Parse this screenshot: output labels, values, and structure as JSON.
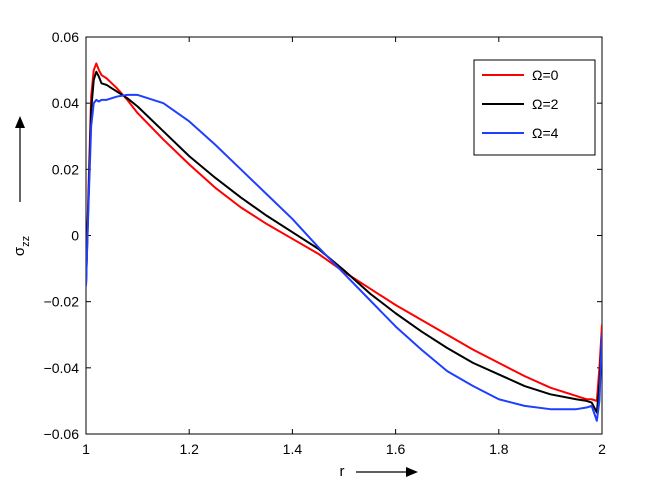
{
  "chart_data": {
    "type": "line",
    "xlabel": "r",
    "ylabel": "σ",
    "ylabel_sub": "zz",
    "xlim": [
      1,
      2
    ],
    "ylim": [
      -0.06,
      0.06
    ],
    "xticks": [
      "1",
      "1.2",
      "1.4",
      "1.6",
      "1.8",
      "2"
    ],
    "xtick_values": [
      1,
      1.2,
      1.4,
      1.6,
      1.8,
      2
    ],
    "yticks": [
      "−0.06",
      "−0.04",
      "−0.02",
      "0",
      "0.02",
      "0.04",
      "0.06"
    ],
    "ytick_values": [
      -0.06,
      -0.04,
      -0.02,
      0,
      0.02,
      0.04,
      0.06
    ],
    "grid": false,
    "legend_position": "top-right",
    "series": [
      {
        "name": "Ω=0",
        "color": "#ff0000",
        "x": [
          1.0,
          1.005,
          1.01,
          1.015,
          1.02,
          1.025,
          1.03,
          1.04,
          1.05,
          1.06,
          1.08,
          1.1,
          1.15,
          1.2,
          1.25,
          1.3,
          1.35,
          1.4,
          1.45,
          1.5,
          1.55,
          1.6,
          1.65,
          1.7,
          1.75,
          1.8,
          1.85,
          1.9,
          1.95,
          1.97,
          1.98,
          1.99,
          1.995,
          2.0
        ],
        "y": [
          -0.015,
          0.015,
          0.042,
          0.05,
          0.052,
          0.05,
          0.0485,
          0.0475,
          0.046,
          0.0445,
          0.041,
          0.037,
          0.029,
          0.0215,
          0.0145,
          0.0085,
          0.0035,
          -0.001,
          -0.0055,
          -0.011,
          -0.016,
          -0.021,
          -0.0255,
          -0.03,
          -0.0345,
          -0.0385,
          -0.0425,
          -0.046,
          -0.0485,
          -0.0495,
          -0.0495,
          -0.05,
          -0.04,
          -0.027
        ]
      },
      {
        "name": "Ω=2",
        "color": "#000000",
        "x": [
          1.0,
          1.005,
          1.01,
          1.015,
          1.02,
          1.025,
          1.03,
          1.04,
          1.05,
          1.06,
          1.08,
          1.1,
          1.15,
          1.2,
          1.25,
          1.3,
          1.35,
          1.4,
          1.45,
          1.5,
          1.55,
          1.6,
          1.65,
          1.7,
          1.75,
          1.8,
          1.85,
          1.9,
          1.95,
          1.97,
          1.98,
          1.99,
          1.995,
          2.0
        ],
        "y": [
          -0.015,
          0.012,
          0.038,
          0.047,
          0.0495,
          0.048,
          0.046,
          0.0455,
          0.0445,
          0.0435,
          0.0415,
          0.039,
          0.0315,
          0.024,
          0.0175,
          0.0115,
          0.006,
          0.001,
          -0.004,
          -0.0105,
          -0.0175,
          -0.0235,
          -0.029,
          -0.034,
          -0.0385,
          -0.042,
          -0.0455,
          -0.048,
          -0.0495,
          -0.05,
          -0.0505,
          -0.0535,
          -0.045,
          -0.03
        ]
      },
      {
        "name": "Ω=4",
        "color": "#1f3fff",
        "x": [
          1.0,
          1.005,
          1.01,
          1.015,
          1.02,
          1.025,
          1.03,
          1.04,
          1.05,
          1.06,
          1.08,
          1.1,
          1.15,
          1.2,
          1.25,
          1.3,
          1.35,
          1.4,
          1.45,
          1.5,
          1.55,
          1.6,
          1.65,
          1.7,
          1.75,
          1.8,
          1.85,
          1.9,
          1.95,
          1.97,
          1.98,
          1.99,
          1.995,
          2.0
        ],
        "y": [
          -0.015,
          0.01,
          0.033,
          0.04,
          0.041,
          0.0405,
          0.041,
          0.041,
          0.0415,
          0.042,
          0.0425,
          0.0425,
          0.04,
          0.0345,
          0.0275,
          0.02,
          0.0125,
          0.005,
          -0.0035,
          -0.0115,
          -0.0195,
          -0.0275,
          -0.0345,
          -0.041,
          -0.0455,
          -0.0495,
          -0.0515,
          -0.0525,
          -0.0525,
          -0.052,
          -0.0515,
          -0.056,
          -0.05,
          -0.03
        ]
      }
    ]
  }
}
